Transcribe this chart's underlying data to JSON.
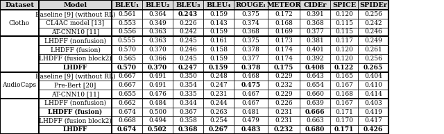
{
  "headers": [
    "Dataset",
    "Model",
    "BLEU₁",
    "BLEU₂",
    "BLEU₃",
    "BLEU₄",
    "ROUGEₗ",
    "METEOR",
    "CIDEr",
    "SPICE",
    "SPIDEr"
  ],
  "clotho_baselines": [
    [
      "Baseline [9] (without RL)",
      "0.561",
      "0.364",
      "0.243",
      "0.159",
      "0.375",
      "0.172",
      "0.391",
      "0.120",
      "0.256"
    ],
    [
      "CL4AC model [13]",
      "0.553",
      "0.349",
      "0.226",
      "0.143",
      "0.374",
      "0.168",
      "0.368",
      "0.115",
      "0.242"
    ],
    [
      "AT-CNN10 [11]",
      "0.556",
      "0.363",
      "0.242",
      "0.159",
      "0.368",
      "0.169",
      "0.377",
      "0.115",
      "0.246"
    ]
  ],
  "clotho_baselines_bold": [
    [
      false,
      false,
      false,
      true,
      false,
      false,
      false,
      false,
      false,
      false
    ],
    [
      false,
      false,
      false,
      false,
      false,
      false,
      false,
      false,
      false,
      false
    ],
    [
      false,
      false,
      false,
      false,
      false,
      false,
      false,
      false,
      false,
      false
    ]
  ],
  "clotho_lhdff": [
    [
      "LHDFF (nonfusion)",
      "0.555",
      "0.363",
      "0.245",
      "0.161",
      "0.375",
      "0.173",
      "0.381",
      "0.117",
      "0.249"
    ],
    [
      "LHDFF (fusion)",
      "0.570",
      "0.370",
      "0.246",
      "0.158",
      "0.378",
      "0.174",
      "0.401",
      "0.120",
      "0.261"
    ],
    [
      "LHDFF (fusion block2)",
      "0.565",
      "0.366",
      "0.245",
      "0.159",
      "0.377",
      "0.174",
      "0.392",
      "0.120",
      "0.256"
    ],
    [
      "LHDFF",
      "0.570",
      "0.370",
      "0.247",
      "0.159",
      "0.378",
      "0.175",
      "0.408",
      "0.122",
      "0.265"
    ]
  ],
  "clotho_lhdff_bold": [
    [
      false,
      false,
      false,
      false,
      false,
      false,
      false,
      false,
      false,
      false
    ],
    [
      false,
      false,
      false,
      false,
      false,
      false,
      false,
      false,
      false,
      false
    ],
    [
      false,
      false,
      false,
      false,
      false,
      false,
      false,
      false,
      false,
      false
    ],
    [
      true,
      true,
      true,
      true,
      true,
      true,
      true,
      true,
      true,
      true
    ]
  ],
  "audiocaps_baselines": [
    [
      "Baseline [9] (without RL)",
      "0.667",
      "0.491",
      "0.350",
      "0.248",
      "0.468",
      "0.229",
      "0.643",
      "0.165",
      "0.404"
    ],
    [
      "Pre-Bert [20]",
      "0.667",
      "0.491",
      "0.354",
      "0.247",
      "0.475",
      "0.232",
      "0.654",
      "0.167",
      "0.410"
    ],
    [
      "AT-CNN10 [11]",
      "0.655",
      "0.476",
      "0.335",
      "0.231",
      "0.467",
      "0.229",
      "0.660",
      "0.168",
      "0.414"
    ]
  ],
  "audiocaps_baselines_bold": [
    [
      false,
      false,
      false,
      false,
      false,
      false,
      false,
      false,
      false,
      false
    ],
    [
      false,
      false,
      false,
      false,
      false,
      true,
      false,
      false,
      false,
      false
    ],
    [
      false,
      false,
      false,
      false,
      false,
      false,
      false,
      false,
      false,
      false
    ]
  ],
  "audiocaps_lhdff": [
    [
      "LHDFF (nonfusion)",
      "0.662",
      "0.484",
      "0.344",
      "0.244",
      "0.467",
      "0.226",
      "0.639",
      "0.167",
      "0.403"
    ],
    [
      "LHDFF (fusion)",
      "0.674",
      "0.500",
      "0.367",
      "0.263",
      "0.481",
      "0.231",
      "0.666",
      "0.171",
      "0.419"
    ],
    [
      "LHDFF (fusion block2)",
      "0.668",
      "0.494",
      "0.358",
      "0.254",
      "0.479",
      "0.231",
      "0.663",
      "0.170",
      "0.417"
    ],
    [
      "LHDFF",
      "0.674",
      "0.502",
      "0.368",
      "0.267",
      "0.483",
      "0.232",
      "0.680",
      "0.171",
      "0.426"
    ]
  ],
  "audiocaps_lhdff_bold": [
    [
      false,
      false,
      false,
      false,
      false,
      false,
      false,
      false,
      false,
      false
    ],
    [
      true,
      false,
      false,
      false,
      false,
      false,
      false,
      true,
      false,
      false
    ],
    [
      false,
      false,
      false,
      false,
      false,
      false,
      false,
      false,
      false,
      false
    ],
    [
      true,
      true,
      true,
      true,
      true,
      true,
      true,
      true,
      true,
      true
    ]
  ],
  "header_bg": "#d9d9d9",
  "border_color": "#000000",
  "text_color": "#000000",
  "fontsize": 6.5,
  "header_fontsize": 7.0
}
